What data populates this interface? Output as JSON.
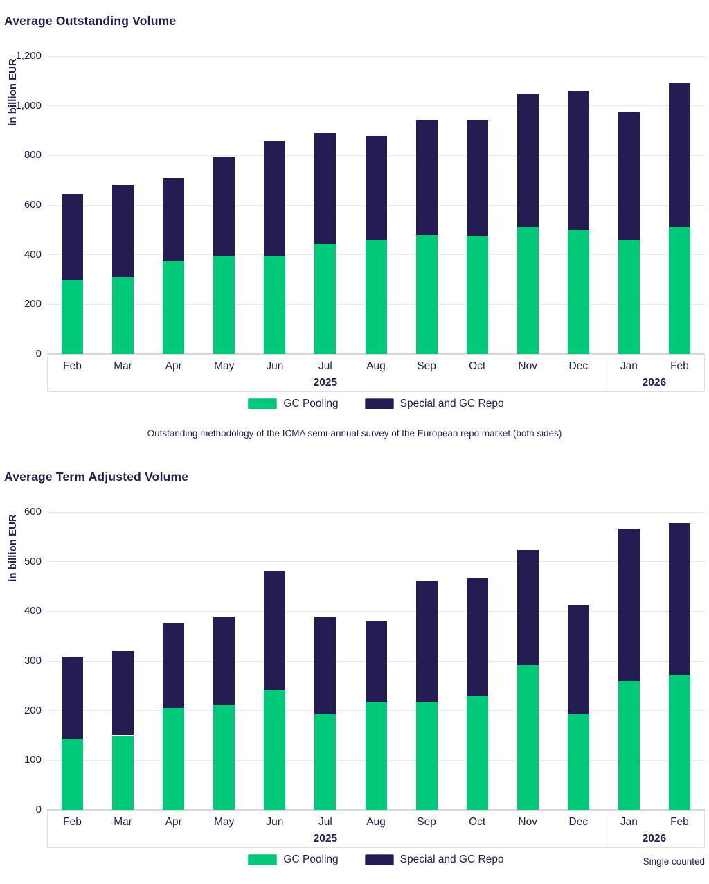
{
  "colors": {
    "gc_pooling": "#00ca7a",
    "special_gc_repo": "#231d54",
    "text": "#231d54",
    "gridline": "#e9e9e9",
    "axis_line": "#d8d8d8",
    "band_border": "#e0e0e0"
  },
  "chart_data": [
    {
      "type": "bar",
      "stacked": true,
      "title": "Average Outstanding Volume",
      "ylabel": "in billion EUR",
      "ylim": [
        0,
        1200
      ],
      "ytick_step": 200,
      "grid": true,
      "legend_position": "bottom-center",
      "categories": [
        "Feb",
        "Mar",
        "Apr",
        "May",
        "Jun",
        "Jul",
        "Aug",
        "Sep",
        "Oct",
        "Nov",
        "Dec",
        "Jan",
        "Feb"
      ],
      "year_groups": [
        {
          "label": "2025",
          "count": 11
        },
        {
          "label": "2026",
          "count": 2
        }
      ],
      "series": [
        {
          "name": "GC Pooling",
          "color": "#00ca7a",
          "values": [
            300,
            310,
            375,
            395,
            395,
            445,
            458,
            480,
            478,
            512,
            500,
            458,
            512
          ]
        },
        {
          "name": "Special and GC Repo",
          "color": "#231d54",
          "values": [
            345,
            370,
            335,
            400,
            463,
            445,
            420,
            463,
            464,
            535,
            557,
            516,
            578
          ]
        }
      ],
      "totals": [
        645,
        680,
        710,
        795,
        858,
        890,
        878,
        943,
        942,
        1047,
        1057,
        974,
        1090
      ],
      "footnote": "Outstanding methodology of the ICMA semi-annual survey of the European repo market (both sides)"
    },
    {
      "type": "bar",
      "stacked": true,
      "title": "Average Term Adjusted Volume",
      "ylabel": "in billion EUR",
      "ylim": [
        0,
        600
      ],
      "ytick_step": 100,
      "grid": true,
      "legend_position": "bottom-center",
      "categories": [
        "Feb",
        "Mar",
        "Apr",
        "May",
        "Jun",
        "Jul",
        "Aug",
        "Sep",
        "Oct",
        "Nov",
        "Dec",
        "Jan",
        "Feb"
      ],
      "year_groups": [
        {
          "label": "2025",
          "count": 11
        },
        {
          "label": "2026",
          "count": 2
        }
      ],
      "series": [
        {
          "name": "GC Pooling",
          "color": "#00ca7a",
          "values": [
            143,
            150,
            205,
            212,
            242,
            193,
            217,
            217,
            229,
            291,
            193,
            260,
            272
          ]
        },
        {
          "name": "Special and GC Repo",
          "color": "#231d54",
          "values": [
            165,
            171,
            172,
            178,
            239,
            195,
            164,
            245,
            239,
            232,
            220,
            306,
            306
          ]
        }
      ],
      "totals": [
        308,
        321,
        377,
        390,
        481,
        388,
        381,
        462,
        468,
        523,
        413,
        566,
        578
      ],
      "note_right": "Single counted"
    }
  ]
}
